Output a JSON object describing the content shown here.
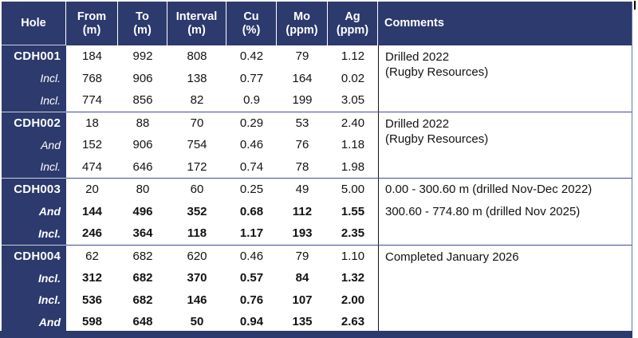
{
  "table": {
    "header": {
      "hole": "Hole",
      "from_label": "From",
      "from_unit": "(m)",
      "to_label": "To",
      "to_unit": "(m)",
      "interval_label": "Interval",
      "interval_unit": "(m)",
      "cu_label": "Cu",
      "cu_unit": "(%)",
      "mo_label": "Mo",
      "mo_unit": "(ppm)",
      "ag_label": "Ag",
      "ag_unit": "(ppm)",
      "comments": "Comments"
    },
    "blocks": [
      {
        "rows": [
          {
            "hole": "CDH001",
            "from": "184",
            "to": "992",
            "interval": "808",
            "cu": "0.42",
            "mo": "79",
            "ag": "1.12"
          },
          {
            "hole": "Incl.",
            "from": "768",
            "to": "906",
            "interval": "138",
            "cu": "0.77",
            "mo": "164",
            "ag": "0.02"
          },
          {
            "hole": "Incl.",
            "from": "774",
            "to": "856",
            "interval": "82",
            "cu": "0.9",
            "mo": "199",
            "ag": "3.05"
          }
        ],
        "comments": [
          "Drilled 2022",
          "(Rugby Resources)"
        ]
      },
      {
        "rows": [
          {
            "hole": "CDH002",
            "from": "18",
            "to": "88",
            "interval": "70",
            "cu": "0.29",
            "mo": "53",
            "ag": "2.40"
          },
          {
            "hole": "And",
            "from": "152",
            "to": "906",
            "interval": "754",
            "cu": "0.46",
            "mo": "76",
            "ag": "1.18"
          },
          {
            "hole": "Incl.",
            "from": "474",
            "to": "646",
            "interval": "172",
            "cu": "0.74",
            "mo": "78",
            "ag": "1.98"
          }
        ],
        "comments": [
          "Drilled 2022",
          "(Rugby Resources)"
        ]
      },
      {
        "rows": [
          {
            "hole": "CDH003",
            "from": "20",
            "to": "80",
            "interval": "60",
            "cu": "0.25",
            "mo": "49",
            "ag": "5.00"
          },
          {
            "hole": "And",
            "from": "144",
            "to": "496",
            "interval": "352",
            "cu": "0.68",
            "mo": "112",
            "ag": "1.55"
          },
          {
            "hole": "Incl.",
            "from": "246",
            "to": "364",
            "interval": "118",
            "cu": "1.17",
            "mo": "193",
            "ag": "2.35"
          }
        ],
        "comments": [
          "0.00 - 300.60 m (drilled Nov-Dec 2022)",
          "300.60 - 774.80 m (drilled Nov 2025)"
        ]
      },
      {
        "rows": [
          {
            "hole": "CDH004",
            "from": "62",
            "to": "682",
            "interval": "620",
            "cu": "0.46",
            "mo": "79",
            "ag": "1.10"
          },
          {
            "hole": "Incl.",
            "from": "312",
            "to": "682",
            "interval": "370",
            "cu": "0.57",
            "mo": "84",
            "ag": "1.32"
          },
          {
            "hole": "Incl.",
            "from": "536",
            "to": "682",
            "interval": "146",
            "cu": "0.76",
            "mo": "107",
            "ag": "2.00"
          },
          {
            "hole": "And",
            "from": "598",
            "to": "648",
            "interval": "50",
            "cu": "0.94",
            "mo": "135",
            "ag": "2.63"
          }
        ],
        "comments": [
          "Completed January 2026"
        ]
      }
    ],
    "colors": {
      "navy": "#2d3a6d",
      "block_line": "#3f4e94",
      "light_line": "#c9cfe0"
    }
  }
}
